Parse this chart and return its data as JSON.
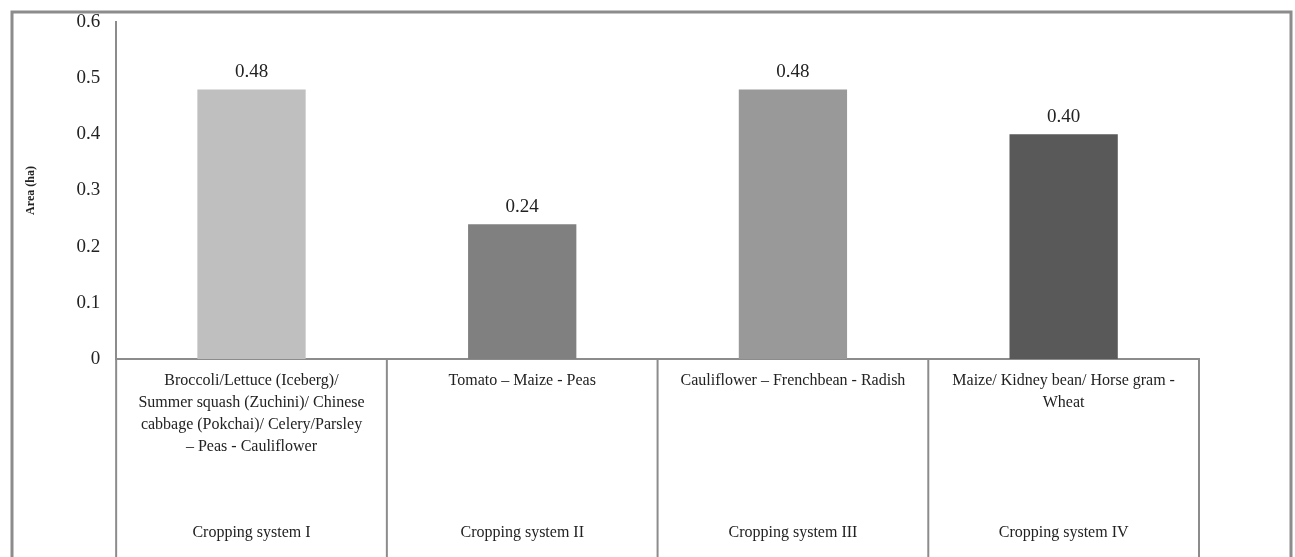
{
  "chart_data": {
    "type": "bar",
    "ylabel": "Area (ha)",
    "categories": [
      "Broccoli/Lettuce (Iceberg)/ Summer squash (Zuchini)/ Chinese cabbage (Pokchai)/ Celery/Parsley – Peas - Cauliflower",
      "Tomato – Maize - Peas",
      "Cauliflower – Frenchbean - Radish",
      "Maize/ Kidney bean/ Horse gram - Wheat"
    ],
    "values": [
      0.48,
      0.24,
      0.48,
      0.4
    ],
    "colors": [
      "#bfbfbf",
      "#808080",
      "#999999",
      "#595959"
    ],
    "value_labels": [
      "0.48",
      "0.24",
      "0.48",
      "0.40"
    ],
    "ylim": [
      0,
      0.6
    ],
    "yticks": [
      0,
      0.1,
      0.2,
      0.3,
      0.4,
      0.5,
      0.6
    ],
    "grid": false,
    "legend": false,
    "annotations": [
      "Cropping system I",
      "Cropping system II",
      "Cropping system III",
      "Cropping system IV"
    ]
  }
}
